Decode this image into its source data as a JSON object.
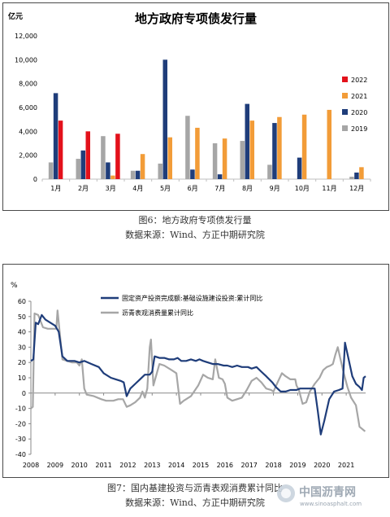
{
  "figure1": {
    "caption": "图6：地方政府专项债发行量",
    "source": "数据来源：Wind、方正中期研究院"
  },
  "figure2": {
    "caption": "图7：国内基建投资与沥青表观消费累计同比",
    "source": "数据来源：Wind、方正中期研究院"
  },
  "watermark": {
    "title": "中国沥青网",
    "url": "www.sinoasphalt.com"
  },
  "colors": {
    "s2022": "#e3111b",
    "s2021": "#f29c38",
    "s2020": "#1f3d7a",
    "s2019": "#a6a6a6",
    "line1": "#1f3d7a",
    "line2": "#a6a6a6"
  },
  "chart_data": [
    {
      "type": "bar",
      "title": "地方政府专项债发行量",
      "ylabel": "亿元",
      "ylim": [
        0,
        12000
      ],
      "yticks": [
        "0",
        "2,000",
        "4,000",
        "6,000",
        "8,000",
        "10,000",
        "12,000"
      ],
      "categories": [
        "1月",
        "2月",
        "3月",
        "4月",
        "5月",
        "6月",
        "7月",
        "8月",
        "9月",
        "10月",
        "11月",
        "12月"
      ],
      "legend_position": "right",
      "series": [
        {
          "name": "2019",
          "values": [
            1400,
            1700,
            3600,
            700,
            1300,
            5300,
            3000,
            3200,
            1200,
            null,
            null,
            200
          ]
        },
        {
          "name": "2020",
          "values": [
            7200,
            2400,
            1400,
            700,
            10000,
            800,
            400,
            6300,
            4700,
            1800,
            null,
            550
          ]
        },
        {
          "name": "2021",
          "values": [
            null,
            null,
            300,
            2100,
            3500,
            4300,
            3400,
            4900,
            5200,
            5400,
            5800,
            1000
          ]
        },
        {
          "name": "2022",
          "values": [
            4900,
            4000,
            3800,
            null,
            null,
            null,
            null,
            null,
            null,
            null,
            null,
            null
          ]
        }
      ]
    },
    {
      "type": "line",
      "ylabel": "%",
      "ylim": [
        -40,
        60
      ],
      "yticks": [
        "-40",
        "-30",
        "-20",
        "-10",
        "0",
        "10",
        "20",
        "30",
        "40",
        "50",
        "60"
      ],
      "xlim": [
        2008,
        2021.8
      ],
      "xticks": [
        "2008",
        "2009",
        "2010",
        "2011",
        "2012",
        "2013",
        "2014",
        "2015",
        "2016",
        "2017",
        "2018",
        "2019",
        "2020",
        "2021"
      ],
      "legend_position": "top",
      "series": [
        {
          "name": "固定资产投资完成额:基础设施建设投资:累计同比",
          "points": [
            [
              2008.0,
              21
            ],
            [
              2008.1,
              22
            ],
            [
              2008.2,
              46
            ],
            [
              2008.3,
              45
            ],
            [
              2008.45,
              51
            ],
            [
              2008.6,
              48
            ],
            [
              2008.8,
              46
            ],
            [
              2009.0,
              44
            ],
            [
              2009.15,
              40
            ],
            [
              2009.3,
              24
            ],
            [
              2009.5,
              21
            ],
            [
              2009.8,
              21
            ],
            [
              2010.0,
              20
            ],
            [
              2010.2,
              21
            ],
            [
              2010.5,
              19
            ],
            [
              2010.8,
              17
            ],
            [
              2011.0,
              13
            ],
            [
              2011.3,
              10
            ],
            [
              2011.5,
              9
            ],
            [
              2011.7,
              8
            ],
            [
              2011.83,
              7
            ],
            [
              2011.95,
              -2
            ],
            [
              2012.1,
              3
            ],
            [
              2012.3,
              6
            ],
            [
              2012.5,
              9
            ],
            [
              2012.7,
              12
            ],
            [
              2012.9,
              12
            ],
            [
              2013.0,
              14
            ],
            [
              2013.1,
              24
            ],
            [
              2013.3,
              23
            ],
            [
              2013.5,
              23
            ],
            [
              2013.7,
              22
            ],
            [
              2013.9,
              22
            ],
            [
              2014.05,
              23
            ],
            [
              2014.2,
              21
            ],
            [
              2014.4,
              21
            ],
            [
              2014.6,
              22
            ],
            [
              2014.8,
              21
            ],
            [
              2014.95,
              22
            ],
            [
              2015.1,
              21
            ],
            [
              2015.3,
              20
            ],
            [
              2015.5,
              19
            ],
            [
              2015.7,
              19
            ],
            [
              2015.95,
              18
            ],
            [
              2016.1,
              18
            ],
            [
              2016.3,
              17
            ],
            [
              2016.5,
              18
            ],
            [
              2016.7,
              17
            ],
            [
              2016.95,
              17
            ],
            [
              2017.1,
              16
            ],
            [
              2017.3,
              17
            ],
            [
              2017.5,
              14
            ],
            [
              2017.7,
              11
            ],
            [
              2017.95,
              7
            ],
            [
              2018.1,
              4
            ],
            [
              2018.3,
              1
            ],
            [
              2018.5,
              1
            ],
            [
              2018.7,
              2
            ],
            [
              2018.95,
              2
            ],
            [
              2019.1,
              3
            ],
            [
              2019.3,
              3
            ],
            [
              2019.5,
              3
            ],
            [
              2019.7,
              3
            ],
            [
              2019.83,
              -12
            ],
            [
              2019.95,
              -27
            ],
            [
              2020.1,
              -18
            ],
            [
              2020.3,
              -4
            ],
            [
              2020.5,
              1
            ],
            [
              2020.7,
              2
            ],
            [
              2020.85,
              3
            ],
            [
              2020.95,
              33
            ],
            [
              2021.1,
              22
            ],
            [
              2021.25,
              11
            ],
            [
              2021.4,
              6
            ],
            [
              2021.55,
              4
            ],
            [
              2021.65,
              2
            ],
            [
              2021.72,
              10
            ],
            [
              2021.8,
              11
            ]
          ]
        },
        {
          "name": "沥青表观消费量累计同比",
          "points": [
            [
              2008.0,
              -10
            ],
            [
              2008.08,
              -9
            ],
            [
              2008.15,
              52
            ],
            [
              2008.3,
              51
            ],
            [
              2008.5,
              43
            ],
            [
              2008.7,
              42
            ],
            [
              2008.9,
              42
            ],
            [
              2009.05,
              42
            ],
            [
              2009.1,
              54
            ],
            [
              2009.3,
              22
            ],
            [
              2009.5,
              21
            ],
            [
              2009.7,
              20
            ],
            [
              2009.9,
              20
            ],
            [
              2010.0,
              18
            ],
            [
              2010.1,
              22
            ],
            [
              2010.2,
              3
            ],
            [
              2010.3,
              -1
            ],
            [
              2010.6,
              -2
            ],
            [
              2010.9,
              -4
            ],
            [
              2011.1,
              -5
            ],
            [
              2011.4,
              -5
            ],
            [
              2011.6,
              -4
            ],
            [
              2011.8,
              -4
            ],
            [
              2011.95,
              -9
            ],
            [
              2012.1,
              -8
            ],
            [
              2012.3,
              -6
            ],
            [
              2012.5,
              -3
            ],
            [
              2012.6,
              1
            ],
            [
              2012.7,
              -3
            ],
            [
              2012.8,
              3
            ],
            [
              2012.9,
              30
            ],
            [
              2012.95,
              35
            ],
            [
              2013.05,
              5
            ],
            [
              2013.3,
              19
            ],
            [
              2013.5,
              18
            ],
            [
              2013.8,
              15
            ],
            [
              2014.0,
              13
            ],
            [
              2014.15,
              -7
            ],
            [
              2014.3,
              -5
            ],
            [
              2014.6,
              -2
            ],
            [
              2014.9,
              5
            ],
            [
              2015.1,
              12
            ],
            [
              2015.3,
              10
            ],
            [
              2015.5,
              9
            ],
            [
              2015.6,
              22
            ],
            [
              2015.75,
              10
            ],
            [
              2015.9,
              9
            ],
            [
              2016.0,
              6
            ],
            [
              2016.1,
              -3
            ],
            [
              2016.2,
              -4
            ],
            [
              2016.3,
              -5
            ],
            [
              2016.5,
              -4
            ],
            [
              2016.7,
              -3
            ],
            [
              2016.9,
              2
            ],
            [
              2017.1,
              8
            ],
            [
              2017.3,
              10
            ],
            [
              2017.5,
              7
            ],
            [
              2017.7,
              3
            ],
            [
              2017.9,
              2
            ],
            [
              2018.0,
              1
            ],
            [
              2018.2,
              8
            ],
            [
              2018.35,
              13
            ],
            [
              2018.5,
              11
            ],
            [
              2018.7,
              9
            ],
            [
              2018.9,
              9
            ],
            [
              2018.95,
              5
            ],
            [
              2019.05,
              2
            ],
            [
              2019.2,
              -7
            ],
            [
              2019.35,
              -6
            ],
            [
              2019.5,
              1
            ],
            [
              2019.7,
              6
            ],
            [
              2019.9,
              10
            ],
            [
              2020.05,
              15
            ],
            [
              2020.2,
              17
            ],
            [
              2020.35,
              18
            ],
            [
              2020.45,
              19
            ],
            [
              2020.55,
              25
            ],
            [
              2020.65,
              30
            ],
            [
              2020.75,
              23
            ],
            [
              2020.9,
              13
            ],
            [
              2021.05,
              4
            ],
            [
              2021.2,
              -3
            ],
            [
              2021.4,
              -8
            ],
            [
              2021.55,
              -22
            ],
            [
              2021.7,
              -24
            ],
            [
              2021.78,
              -25
            ]
          ]
        }
      ]
    }
  ]
}
